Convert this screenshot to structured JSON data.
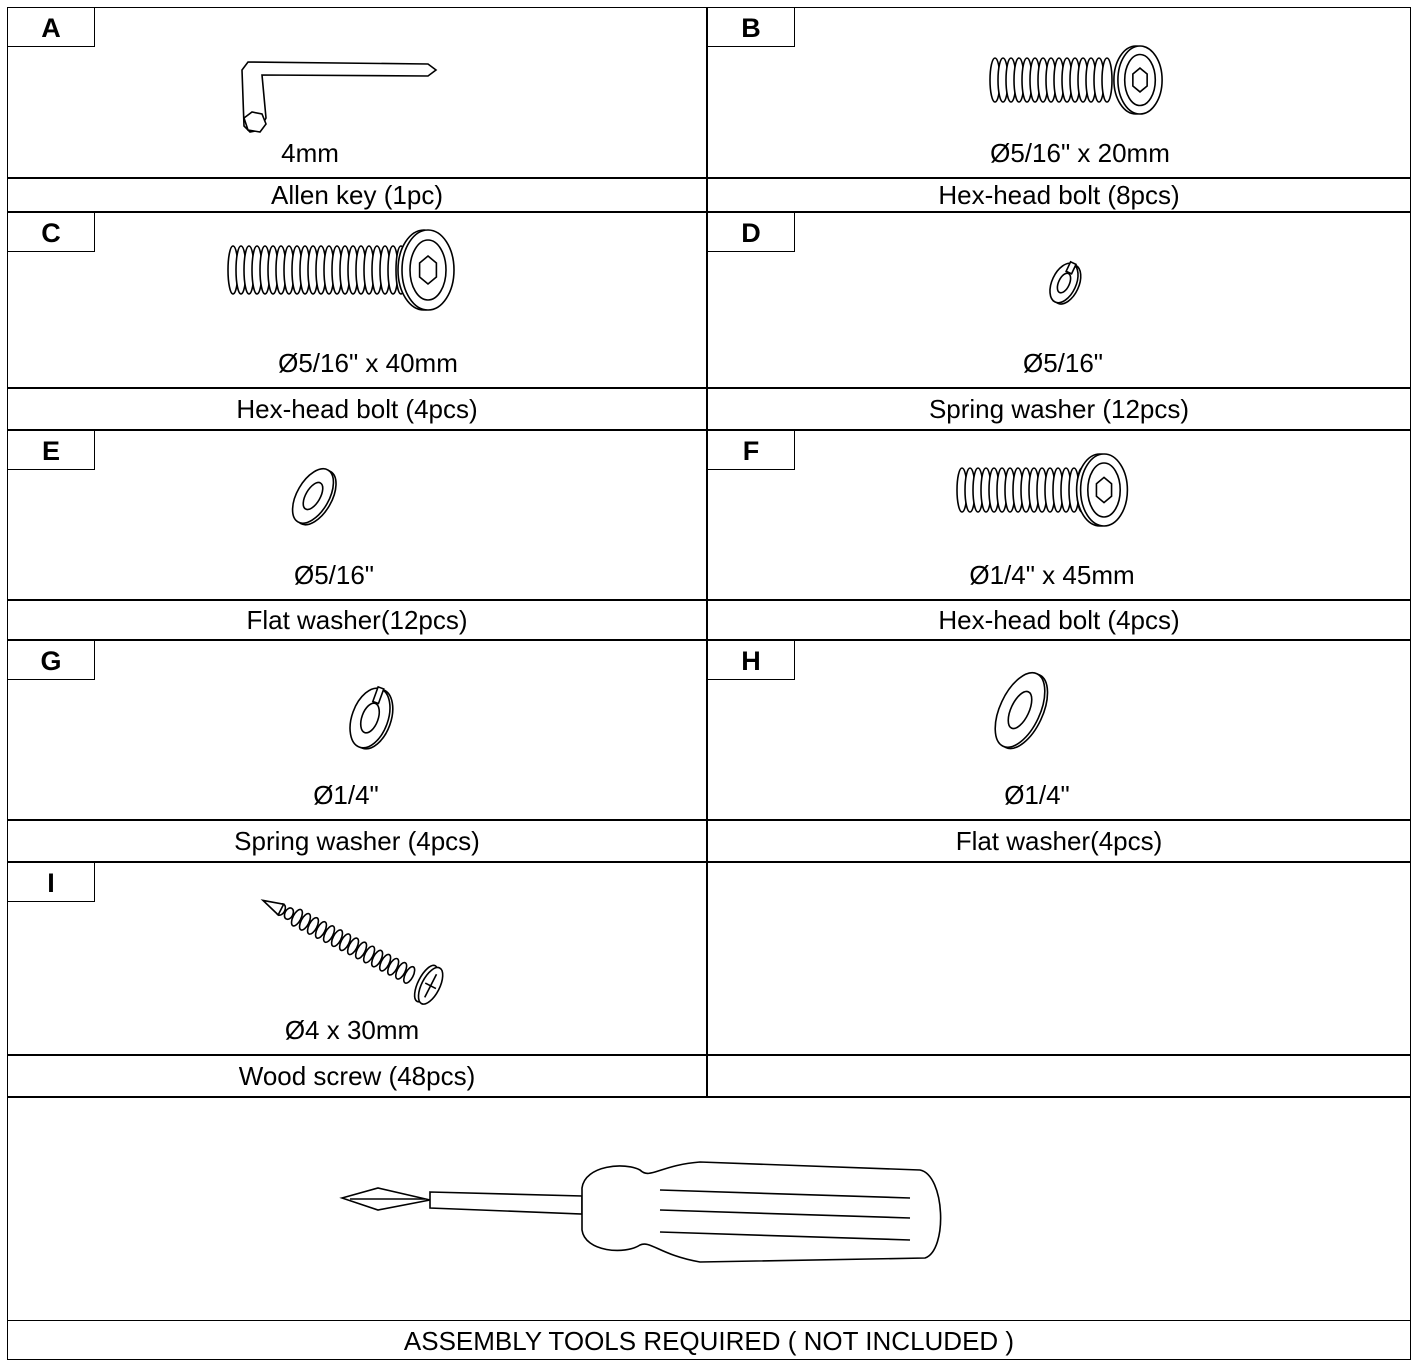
{
  "items": [
    {
      "letter": "A",
      "size": "4mm",
      "name": "Allen key (1pc)"
    },
    {
      "letter": "B",
      "size": "Ø5/16\" x 20mm",
      "name": "Hex-head bolt (8pcs)"
    },
    {
      "letter": "C",
      "size": "Ø5/16\" x 40mm",
      "name": "Hex-head bolt (4pcs)"
    },
    {
      "letter": "D",
      "size": "Ø5/16\"",
      "name": "Spring washer (12pcs)"
    },
    {
      "letter": "E",
      "size": "Ø5/16\"",
      "name": "Flat washer(12pcs)"
    },
    {
      "letter": "F",
      "size": "Ø1/4\" x 45mm",
      "name": "Hex-head bolt (4pcs)"
    },
    {
      "letter": "G",
      "size": "Ø1/4\"",
      "name": "Spring washer (4pcs)"
    },
    {
      "letter": "H",
      "size": "Ø1/4\"",
      "name": "Flat washer(4pcs)"
    },
    {
      "letter": "I",
      "size": "Ø4 x 30mm",
      "name": "Wood screw (48pcs)"
    }
  ],
  "tools": {
    "caption": "ASSEMBLY TOOLS REQUIRED ( NOT INCLUDED )"
  }
}
